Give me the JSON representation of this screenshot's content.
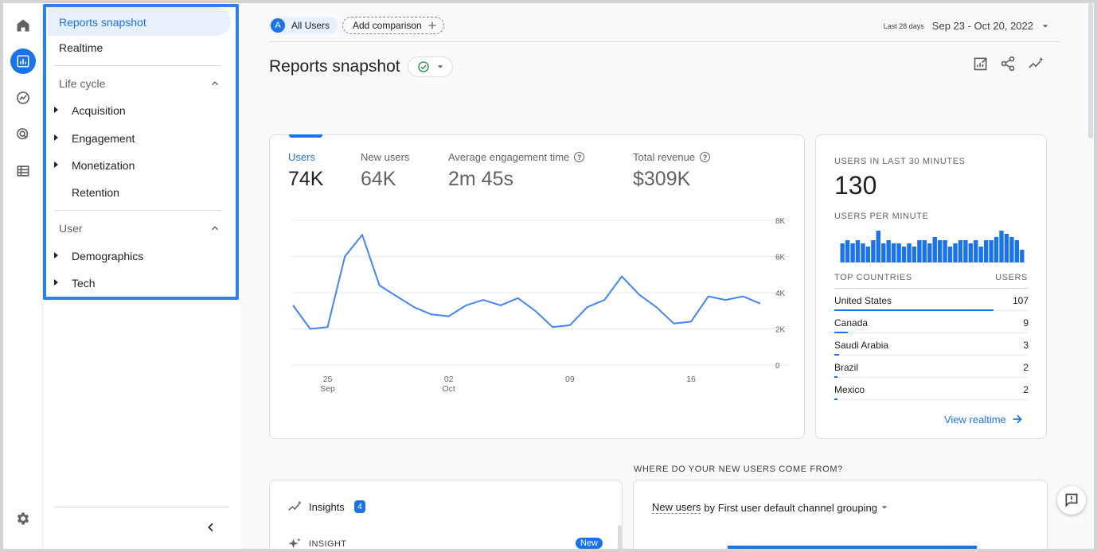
{
  "nav": {
    "reports_snapshot": "Reports snapshot",
    "realtime": "Realtime",
    "lifecycle": "Life cycle",
    "acquisition": "Acquisition",
    "engagement": "Engagement",
    "monetization": "Monetization",
    "retention": "Retention",
    "user": "User",
    "demographics": "Demographics",
    "tech": "Tech"
  },
  "header": {
    "segment_avatar": "A",
    "segment": "All Users",
    "add_comparison": "Add comparison",
    "date_small": "Last 28 days",
    "date_range": "Sep 23 - Oct 20, 2022",
    "title": "Reports snapshot"
  },
  "metrics": [
    {
      "label": "Users",
      "value": "74K"
    },
    {
      "label": "New users",
      "value": "64K"
    },
    {
      "label": "Average engagement time",
      "value": "2m 45s"
    },
    {
      "label": "Total revenue",
      "value": "$309K"
    }
  ],
  "chart_data": {
    "type": "line",
    "series": [
      {
        "values": [
          3300,
          2000,
          2100,
          6000,
          7200,
          4400,
          3800,
          3200,
          2800,
          2700,
          3300,
          3600,
          3300,
          3700,
          3000,
          2100,
          2200,
          3200,
          3600,
          4900,
          3900,
          3200,
          2300,
          2400,
          3800,
          3600,
          3800,
          3400
        ]
      }
    ],
    "x_ticks": [
      {
        "day": "25",
        "month": "Sep",
        "index": 2
      },
      {
        "day": "02",
        "month": "Oct",
        "index": 9
      },
      {
        "day": "09",
        "month": "",
        "index": 16
      },
      {
        "day": "16",
        "month": "",
        "index": 23
      }
    ],
    "y_ticks": [
      "8K",
      "6K",
      "4K",
      "2K",
      "0"
    ],
    "ylim": [
      0,
      8000
    ],
    "grid": true,
    "color": "#4285f4"
  },
  "realtime": {
    "title": "USERS IN LAST 30 MINUTES",
    "value": "130",
    "per_minute": "USERS PER MINUTE",
    "minute_bars": [
      6,
      7,
      6,
      7,
      6,
      5,
      7,
      10,
      6,
      7,
      6,
      6,
      5,
      6,
      5,
      7,
      7,
      6,
      8,
      7,
      7,
      5,
      6,
      7,
      7,
      6,
      7,
      5,
      7,
      7,
      8,
      10,
      9,
      8,
      7,
      4
    ],
    "countries_header": "TOP COUNTRIES",
    "users_header": "USERS",
    "countries": [
      {
        "name": "United States",
        "value": "107",
        "share": 1.0
      },
      {
        "name": "Canada",
        "value": "9",
        "share": 0.084
      },
      {
        "name": "Saudi Arabia",
        "value": "3",
        "share": 0.028
      },
      {
        "name": "Brazil",
        "value": "2",
        "share": 0.019
      },
      {
        "name": "Mexico",
        "value": "2",
        "share": 0.019
      }
    ],
    "view_realtime": "View realtime"
  },
  "insights": {
    "label": "Insights",
    "count": "4",
    "insight_tag": "INSIGHT",
    "new_badge": "New"
  },
  "acquisition": {
    "section_title": "WHERE DO YOUR NEW USERS COME FROM?",
    "metric": "New users",
    "by": "by First user default channel grouping"
  },
  "colors": {
    "accent": "#1a73e8",
    "line": "#4285f4"
  }
}
